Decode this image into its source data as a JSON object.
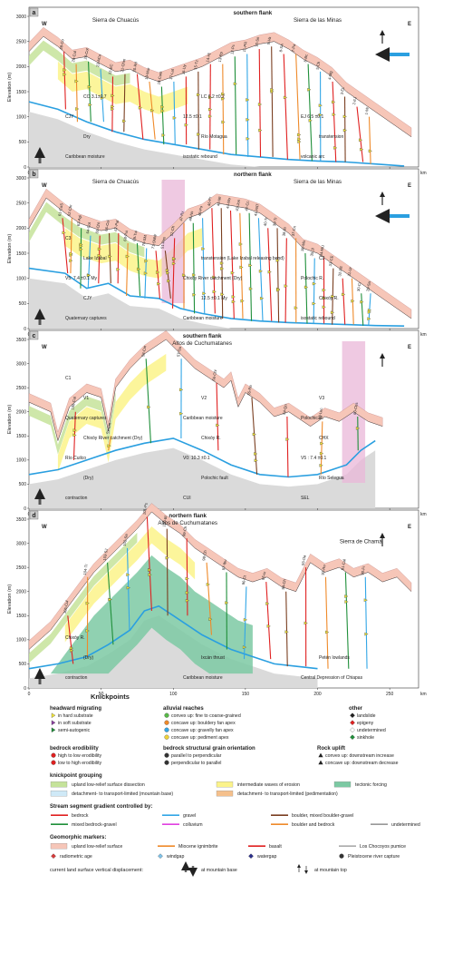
{
  "colors": {
    "upland": "#f6c6b8",
    "yellow_band": "#fbf38a",
    "green_band": "#c5e39a",
    "tectonic": "#7cc9a3",
    "pink_capture": "#e9b7d8",
    "light_blue": "#cfe9f7",
    "river_blue": "#2a9fe0",
    "ground_gray": "#dadada",
    "bedrock_red": "#e02020",
    "mixed_green": "#1f8f3a",
    "gravel_blue": "#32a6e6",
    "colluvium_magenta": "#e040e0",
    "boulder_orange": "#ef8a2a",
    "boulder_brown": "#7a3f20",
    "undetermined_gray": "#999999",
    "windgap": "#7ec3ea",
    "watergap": "#2b2f8c"
  },
  "panels": [
    {
      "letter": "a",
      "flank": "southern flank",
      "west": "W",
      "east": "E",
      "ranges": [
        "Sierra de Chuacús",
        "Sierra de las Minas"
      ],
      "labels": [
        "Caribbean moisture",
        "isostatic rebound",
        "volcanic arc",
        "Dry",
        "Río Motagua",
        "transtension",
        "CJY",
        "12.5 ±0.1",
        "EJ 6.5 ±0.1",
        "CO 3.1±0.7",
        "LC 6.2 ±0.2"
      ],
      "streams": [
        "28-Co",
        "26-Cul",
        "24-Cot",
        "23-ACo",
        "22-EC",
        "21-Chm",
        "20-Rd",
        "19-Mor",
        "18-Com",
        "17-Lat",
        "16-Uy",
        "15-Tz",
        "14-Hj",
        "13-Rp",
        "12-Pc",
        "11-PR",
        "10-Sn",
        "9-Va",
        "8-SA",
        "7-Pa",
        "6-Bc",
        "5-Ch",
        "4-Mg",
        "3-EL",
        "2-EJ",
        "1-Mr"
      ],
      "y_axis": {
        "label": "Elevation (m)",
        "ticks": [
          "0",
          "500",
          "1000",
          "1500",
          "2000",
          "2500",
          "3000"
        ]
      },
      "x_axis": {
        "unit": "km",
        "ticks": [
          "0",
          "50",
          "100",
          "150",
          "200",
          "250"
        ]
      }
    },
    {
      "letter": "b",
      "flank": "northern flank",
      "west": "W",
      "east": "E",
      "ranges": [
        "Sierra de Chuacús",
        "Sierra de las Minas"
      ],
      "labels": [
        "Quaternary captures",
        "Caribbean moisture",
        "isostatic rebound",
        "CJY",
        "12.5 ±0.1 My",
        "Chixóy R.",
        "V5: 7.4 ±0.1 My",
        "Chixóy River catchment (Dry)",
        "Polochic R.",
        "Lake Izabal",
        "transtension (Lake Izabal releasing bend)",
        "C2",
        "C3"
      ],
      "streams": [
        "61-CoS",
        "62-Chr",
        "63-Agi",
        "64-Cot",
        "65-Chl",
        "66-Coi",
        "67-Pat",
        "68-Pxi",
        "69-Tui",
        "70-SM",
        "71-SMW",
        "51-Pns",
        "52-Ch",
        "47-Rx",
        "48-Ns",
        "49-Po",
        "46-Pr",
        "45-Mi",
        "44-Mo",
        "43-Jon",
        "42-Cc",
        "41-PAT",
        "40-Tr",
        "39-Tr",
        "38-Ri",
        "37-Cn",
        "36-Mo",
        "35-Jl",
        "34-MU",
        "33-CE",
        "32-PE",
        "31-Ur",
        "30-Cr",
        "29-Sa"
      ],
      "y_axis": {
        "label": "Elevation (m)",
        "ticks": [
          "0",
          "500",
          "1000",
          "1500",
          "2000",
          "2500",
          "3000"
        ]
      },
      "x_axis": {
        "unit": "km",
        "ticks": [
          "0",
          "50",
          "100",
          "150",
          "200",
          "250"
        ]
      }
    },
    {
      "letter": "c",
      "flank": "southern flank",
      "west": "W",
      "east": "E",
      "ranges": [
        "Altos de Cuchumatanes"
      ],
      "labels": [
        "contraction",
        "CUI",
        "SEL",
        "(Dry)",
        "Polochic fault",
        "Río Selegua",
        "Río Cuilco",
        "V0: 10.3 ±0.1",
        "V5 : 7.4 ±0.1",
        "Chixóy River catchment (Dry)",
        "Chixóy R.",
        "CHX",
        "Quaternary captures",
        "Caribbean moisture",
        "Polochic R.",
        "V1",
        "V2",
        "V3",
        "C1"
      ],
      "streams": [
        "106-Cul",
        "59-Cm",
        "58-Cm",
        "57-Su",
        "56-Chi",
        "55-Ra",
        "54-Qn",
        "53-Lec",
        "60-Chs"
      ],
      "y_axis": {
        "label": "Elevation (m)",
        "ticks": [
          "0",
          "500",
          "1000",
          "1500",
          "2000",
          "2500",
          "3000",
          "3500"
        ]
      },
      "x_axis": {
        "unit": "km",
        "ticks": [
          "0",
          "50",
          "100",
          "150",
          "200",
          "250"
        ]
      }
    },
    {
      "letter": "d",
      "flank": "northern flank",
      "west": "W",
      "east": "E",
      "ranges": [
        "Altos de Cuchumatanes",
        "Sierra de Chamá"
      ],
      "labels": [
        "contraction",
        "Caribbean moisture",
        "Central Depression of Chiapas",
        "(Dry)",
        "Ixcán thrust",
        "Petén lowlands",
        "Chixóy R."
      ],
      "streams": [
        "105-Cul",
        "104-Tr",
        "103-SJ",
        "102-Sa",
        "101-Ps",
        "100-Bl",
        "99-Ch",
        "98-Ch",
        "97-Ibu",
        "96-Ct",
        "95-Ix",
        "94-Ch",
        "93-Da",
        "92-Ro",
        "91-Cal",
        "90-Fr"
      ],
      "y_axis": {
        "label": "Elevation (m)",
        "ticks": [
          "0",
          "500",
          "1000",
          "1500",
          "2000",
          "2500",
          "3000",
          "3500"
        ]
      },
      "x_axis": {
        "unit": "km",
        "ticks": [
          "0",
          "50",
          "100",
          "150",
          "200",
          "250"
        ]
      }
    }
  ],
  "legend": {
    "knickpoints_title": "Knickpoints",
    "headward_title": "headward migrating",
    "headward_items": [
      "in hard substrate",
      "in soft substrate",
      "semi-autogenic"
    ],
    "alluvial_title": "alluvial reaches",
    "alluvial_items": [
      "convex up: fine to coarse-grained",
      "concave up: bouldery fan apex",
      "concave up: gravelly fan apex",
      "concave up: pediment apex"
    ],
    "other_title": "other",
    "other_items": [
      "landslide",
      "epigeny",
      "undetermined",
      "sinkhole"
    ],
    "erodibility_title": "bedrock erodibility",
    "erodibility_items": [
      "high to low erodibility",
      "low to high erodibility"
    ],
    "grain_title": "bedrock structural grain orientation",
    "grain_items": [
      "parallel to perpendicular",
      "perpendicular to parallel"
    ],
    "uplift_title": "Rock uplift",
    "uplift_items": [
      "convex up: downstream increase",
      "concave up: downstream decrease"
    ],
    "grouping_title": "knickpoint grouping",
    "grouping_items": [
      "upland low-relief surface dissection",
      "intermediate waves of erosion",
      "tectonic forcing",
      "detachment- to transport-limited (mountain base)",
      "detachment- to transport-limited (pedimentation)"
    ],
    "gradient_title": "Stream segment gradient controlled by:",
    "gradient_items": [
      "bedrock",
      "gravel",
      "boulder, mixed boulder-gravel",
      "mixed bedrock-gravel",
      "colluvium",
      "boulder and bedrock",
      "undetermined"
    ],
    "geomorphic_title": "Geomorphic markers:",
    "geomorphic_items": [
      "upland low-relief surface",
      "Miocene ignimbrite",
      "basalt",
      "Los Chocoyos pumice",
      "radiometric age",
      "windgap",
      "watergap",
      "Pleistocene river capture"
    ],
    "displacement_title": "current land surface vertical displacement:",
    "displacement_items": [
      "at mountain base",
      "at mountain top"
    ]
  }
}
